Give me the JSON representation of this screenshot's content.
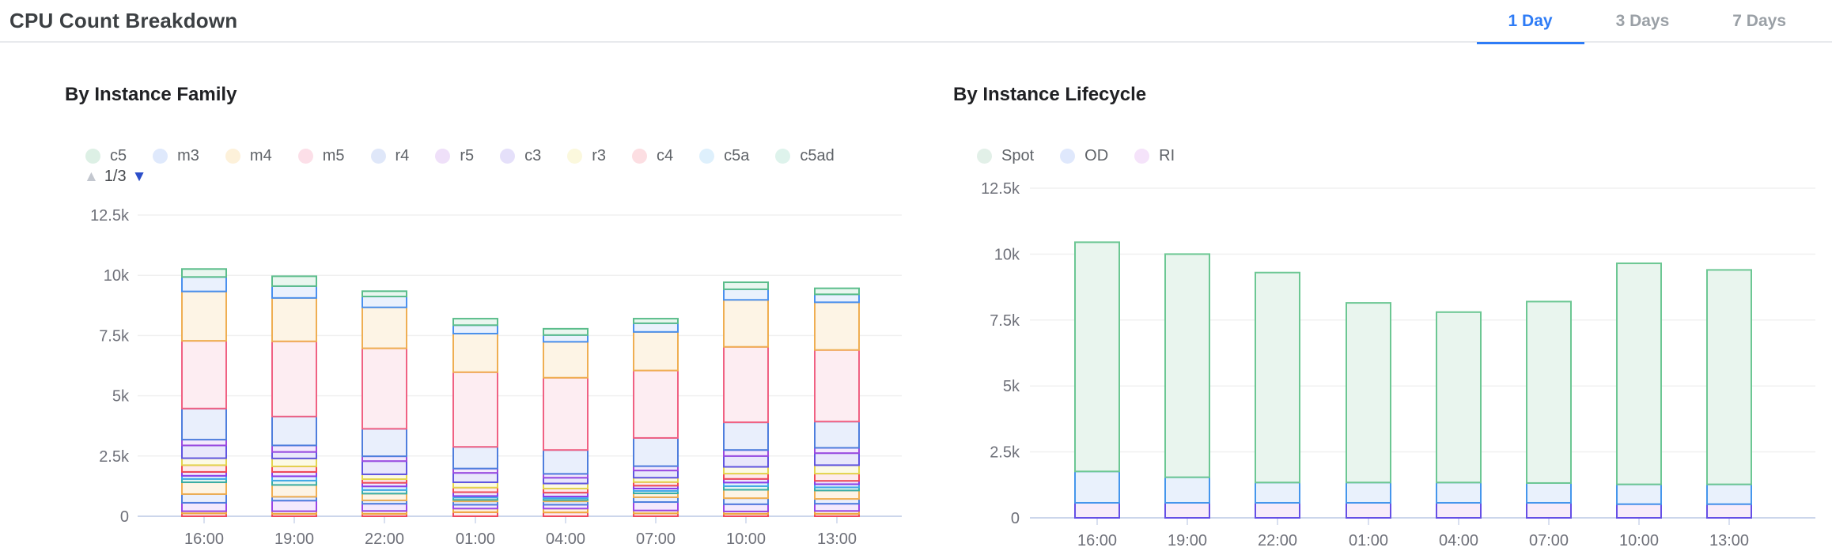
{
  "header": {
    "title": "CPU Count Breakdown",
    "tabs": [
      {
        "label": "1 Day",
        "active": true
      },
      {
        "label": "3 Days",
        "active": false
      },
      {
        "label": "7 Days",
        "active": false
      }
    ]
  },
  "colors": {
    "accent_blue": "#2e7cf6",
    "inactive_tab": "#9aa0a6",
    "axis_line": "#ccd6eb",
    "gridline": "#f0f0f0",
    "axis_label": "#6e7079",
    "pager_up": "#c3c7cf",
    "pager_down": "#2b4ec9"
  },
  "left_chart": {
    "title": "By Instance Family",
    "legend": [
      {
        "label": "c5",
        "color": "#ddf0e5"
      },
      {
        "label": "m3",
        "color": "#dfe9fc"
      },
      {
        "label": "m4",
        "color": "#fdf1da"
      },
      {
        "label": "m5",
        "color": "#fcdfe8"
      },
      {
        "label": "r4",
        "color": "#dfe7f9"
      },
      {
        "label": "r5",
        "color": "#efe0f9"
      },
      {
        "label": "c3",
        "color": "#e5e0fa"
      },
      {
        "label": "r3",
        "color": "#fbf8dd"
      },
      {
        "label": "c4",
        "color": "#fcdee2"
      },
      {
        "label": "c5a",
        "color": "#def0fc"
      },
      {
        "label": "c5ad",
        "color": "#def3ec"
      }
    ],
    "pagination": {
      "label": "1/3",
      "up_enabled": false,
      "down_enabled": true
    },
    "chart_data": {
      "type": "bar",
      "stacked": true,
      "categories": [
        "16:00",
        "19:00",
        "22:00",
        "01:00",
        "04:00",
        "07:00",
        "10:00",
        "13:00"
      ],
      "ylim": [
        0,
        12500
      ],
      "yticks": [
        0,
        2500,
        5000,
        7500,
        10000,
        12500
      ],
      "ytick_labels": [
        "0",
        "2.5k",
        "5k",
        "7.5k",
        "10k",
        "12.5k"
      ],
      "grid": true,
      "legend_position": "top",
      "note_series_order": "bottom to top; unnamed series belong to legend pages 2-3 (not visible)",
      "series": [
        {
          "name": "",
          "border": "#ef4a5e",
          "fill": "#fdecef",
          "values": [
            120,
            100,
            100,
            170,
            160,
            120,
            100,
            100
          ]
        },
        {
          "name": "",
          "border": "#efa93f",
          "fill": "#fdf2e2",
          "values": [
            90,
            110,
            120,
            150,
            160,
            120,
            100,
            120
          ]
        },
        {
          "name": "",
          "border": "#9a45e6",
          "fill": "#f4e9fd",
          "values": [
            350,
            440,
            300,
            160,
            160,
            350,
            300,
            300
          ]
        },
        {
          "name": "",
          "border": "#4f7edd",
          "fill": "#eaeffc",
          "values": [
            360,
            160,
            140,
            140,
            140,
            200,
            250,
            200
          ]
        },
        {
          "name": "",
          "border": "#efae52",
          "fill": "#fdf4e5",
          "values": [
            490,
            490,
            280,
            60,
            50,
            160,
            350,
            350
          ]
        },
        {
          "name": "c5ad",
          "border": "#3aada4",
          "fill": "#e5f5f2",
          "values": [
            140,
            180,
            150,
            100,
            80,
            100,
            150,
            130
          ]
        },
        {
          "name": "c5a",
          "border": "#41a8e8",
          "fill": "#e7f3fd",
          "values": [
            130,
            180,
            150,
            60,
            70,
            100,
            150,
            130
          ]
        },
        {
          "name": "",
          "border": "#8a3ee8",
          "fill": "#f1e8fc",
          "values": [
            160,
            180,
            150,
            160,
            160,
            120,
            150,
            140
          ]
        },
        {
          "name": "c4",
          "border": "#f04a56",
          "fill": "#fdebed",
          "values": [
            280,
            230,
            150,
            190,
            170,
            150,
            220,
            300
          ]
        },
        {
          "name": "r3",
          "border": "#e3d44e",
          "fill": "#fcfae5",
          "values": [
            290,
            330,
            200,
            220,
            210,
            180,
            280,
            350
          ]
        },
        {
          "name": "c3",
          "border": "#6055e0",
          "fill": "#e9e7fb",
          "values": [
            530,
            270,
            550,
            390,
            240,
            300,
            450,
            500
          ]
        },
        {
          "name": "r5",
          "border": "#9a4be0",
          "fill": "#f3e9fc",
          "values": [
            240,
            270,
            200,
            180,
            160,
            180,
            250,
            220
          ]
        },
        {
          "name": "r4",
          "border": "#4f7edd",
          "fill": "#e9effc",
          "values": [
            1290,
            1200,
            1140,
            900,
            990,
            1170,
            1150,
            1090
          ]
        },
        {
          "name": "m5",
          "border": "#f06183",
          "fill": "#fdedf2",
          "values": [
            2810,
            3120,
            3340,
            3100,
            3000,
            2800,
            3130,
            2970
          ]
        },
        {
          "name": "m4",
          "border": "#efae52",
          "fill": "#fdf4e5",
          "values": [
            2050,
            1800,
            1700,
            1600,
            1490,
            1600,
            1950,
            1980
          ]
        },
        {
          "name": "m3",
          "border": "#4a90ee",
          "fill": "#eaf1fd",
          "values": [
            600,
            490,
            450,
            350,
            280,
            360,
            440,
            330
          ]
        },
        {
          "name": "c5",
          "border": "#5bbd8b",
          "fill": "#e9f6ef",
          "values": [
            330,
            410,
            220,
            270,
            260,
            190,
            290,
            250
          ]
        }
      ]
    }
  },
  "right_chart": {
    "title": "By Instance Lifecycle",
    "legend": [
      {
        "label": "Spot",
        "color": "#e2f0e8"
      },
      {
        "label": "OD",
        "color": "#dfe8fc"
      },
      {
        "label": "RI",
        "color": "#f5e3fa"
      }
    ],
    "chart_data": {
      "type": "bar",
      "stacked": true,
      "categories": [
        "16:00",
        "19:00",
        "22:00",
        "01:00",
        "04:00",
        "07:00",
        "10:00",
        "13:00"
      ],
      "ylim": [
        0,
        12500
      ],
      "yticks": [
        0,
        2500,
        5000,
        7500,
        10000,
        12500
      ],
      "ytick_labels": [
        "0",
        "2.5k",
        "5k",
        "7.5k",
        "10k",
        "12.5k"
      ],
      "grid": true,
      "legend_position": "top",
      "note_series_order": "bottom to top",
      "series": [
        {
          "name": "RI",
          "border": "#6550e6",
          "fill": "#f7ecfa",
          "values": [
            570,
            570,
            570,
            570,
            570,
            570,
            520,
            520
          ]
        },
        {
          "name": "OD",
          "border": "#4596ec",
          "fill": "#e9f1fc",
          "values": [
            1190,
            970,
            770,
            770,
            770,
            750,
            750,
            750
          ]
        },
        {
          "name": "Spot",
          "border": "#6cc793",
          "fill": "#e9f5ee",
          "values": [
            8690,
            8460,
            7960,
            6810,
            6460,
            6880,
            8380,
            8130
          ]
        }
      ]
    }
  }
}
